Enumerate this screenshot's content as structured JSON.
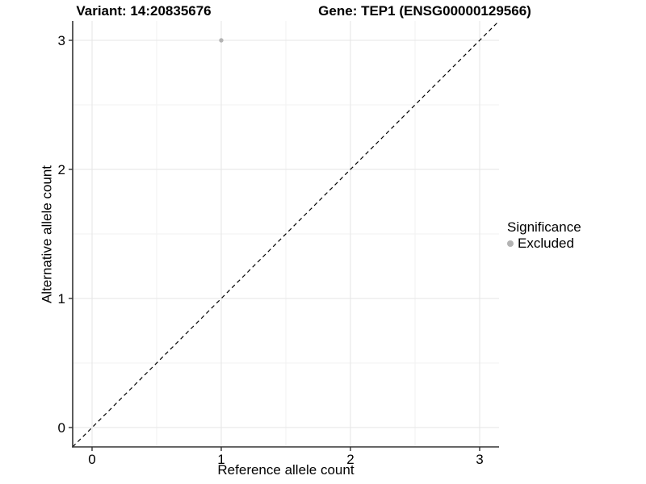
{
  "titles": {
    "variant": "Variant: 14:20835676",
    "gene": "Gene: TEP1 (ENSG00000129566)"
  },
  "chart_data": {
    "type": "scatter",
    "title_left": "Variant: 14:20835676",
    "title_right": "Gene: TEP1 (ENSG00000129566)",
    "xlabel": "Reference allele count",
    "ylabel": "Alternative allele count",
    "xlim": [
      -0.15,
      3.15
    ],
    "ylim": [
      -0.15,
      3.15
    ],
    "x_ticks": [
      0,
      1,
      2,
      3
    ],
    "y_ticks": [
      0,
      1,
      2,
      3
    ],
    "x_minor_ticks": [
      0.5,
      1.5,
      2.5
    ],
    "y_minor_ticks": [
      0.5,
      1.5,
      2.5
    ],
    "grid": "major and minor, light gray, no panel border",
    "series": [
      {
        "name": "Excluded",
        "color": "#b3b3b3",
        "points": [
          {
            "x": 1,
            "y": 3
          }
        ],
        "point_radius": 2.7
      }
    ],
    "reference_line": {
      "description": "identity line y = x",
      "style": "dashed",
      "color": "#000000",
      "from": [
        -0.15,
        -0.15
      ],
      "to": [
        3.15,
        3.15
      ]
    },
    "legend": {
      "title": "Significance",
      "position": "right",
      "items": [
        {
          "label": "Excluded",
          "color": "#b3b3b3"
        }
      ]
    },
    "colors": {
      "grid_major": "#e6e6e6",
      "grid_minor": "#f2f2f2",
      "axis": "#333333",
      "text": "#000000",
      "background": "#ffffff"
    }
  }
}
